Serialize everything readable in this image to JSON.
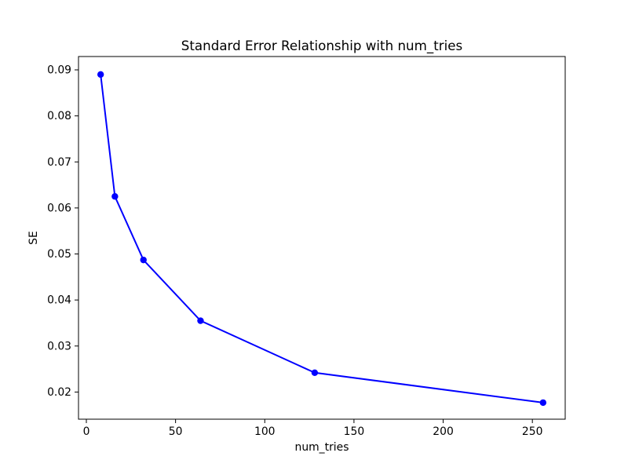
{
  "figure": {
    "background": "#ffffff",
    "spine_color": "#000000",
    "text_color": "#000000"
  },
  "chart_data": {
    "type": "line",
    "title": "Standard Error Relationship with num_tries",
    "xlabel": "num_tries",
    "ylabel": "SE",
    "x": [
      8,
      16,
      32,
      64,
      128,
      256
    ],
    "y": [
      0.089,
      0.0625,
      0.0487,
      0.0355,
      0.0242,
      0.0177
    ],
    "series": [
      {
        "name": "SE",
        "x": [
          8,
          16,
          32,
          64,
          128,
          256
        ],
        "values": [
          0.089,
          0.0625,
          0.0487,
          0.0355,
          0.0242,
          0.0177
        ]
      }
    ],
    "xticks": [
      0,
      50,
      100,
      150,
      200,
      250
    ],
    "yticks": [
      0.02,
      0.03,
      0.04,
      0.05,
      0.06,
      0.07,
      0.08,
      0.09
    ],
    "xlim": [
      -4.4,
      268.4
    ],
    "ylim": [
      0.0141,
      0.0929
    ],
    "grid": false,
    "legend": null,
    "line_color": "#0000ff",
    "marker": "o",
    "marker_color": "#0000ff"
  }
}
